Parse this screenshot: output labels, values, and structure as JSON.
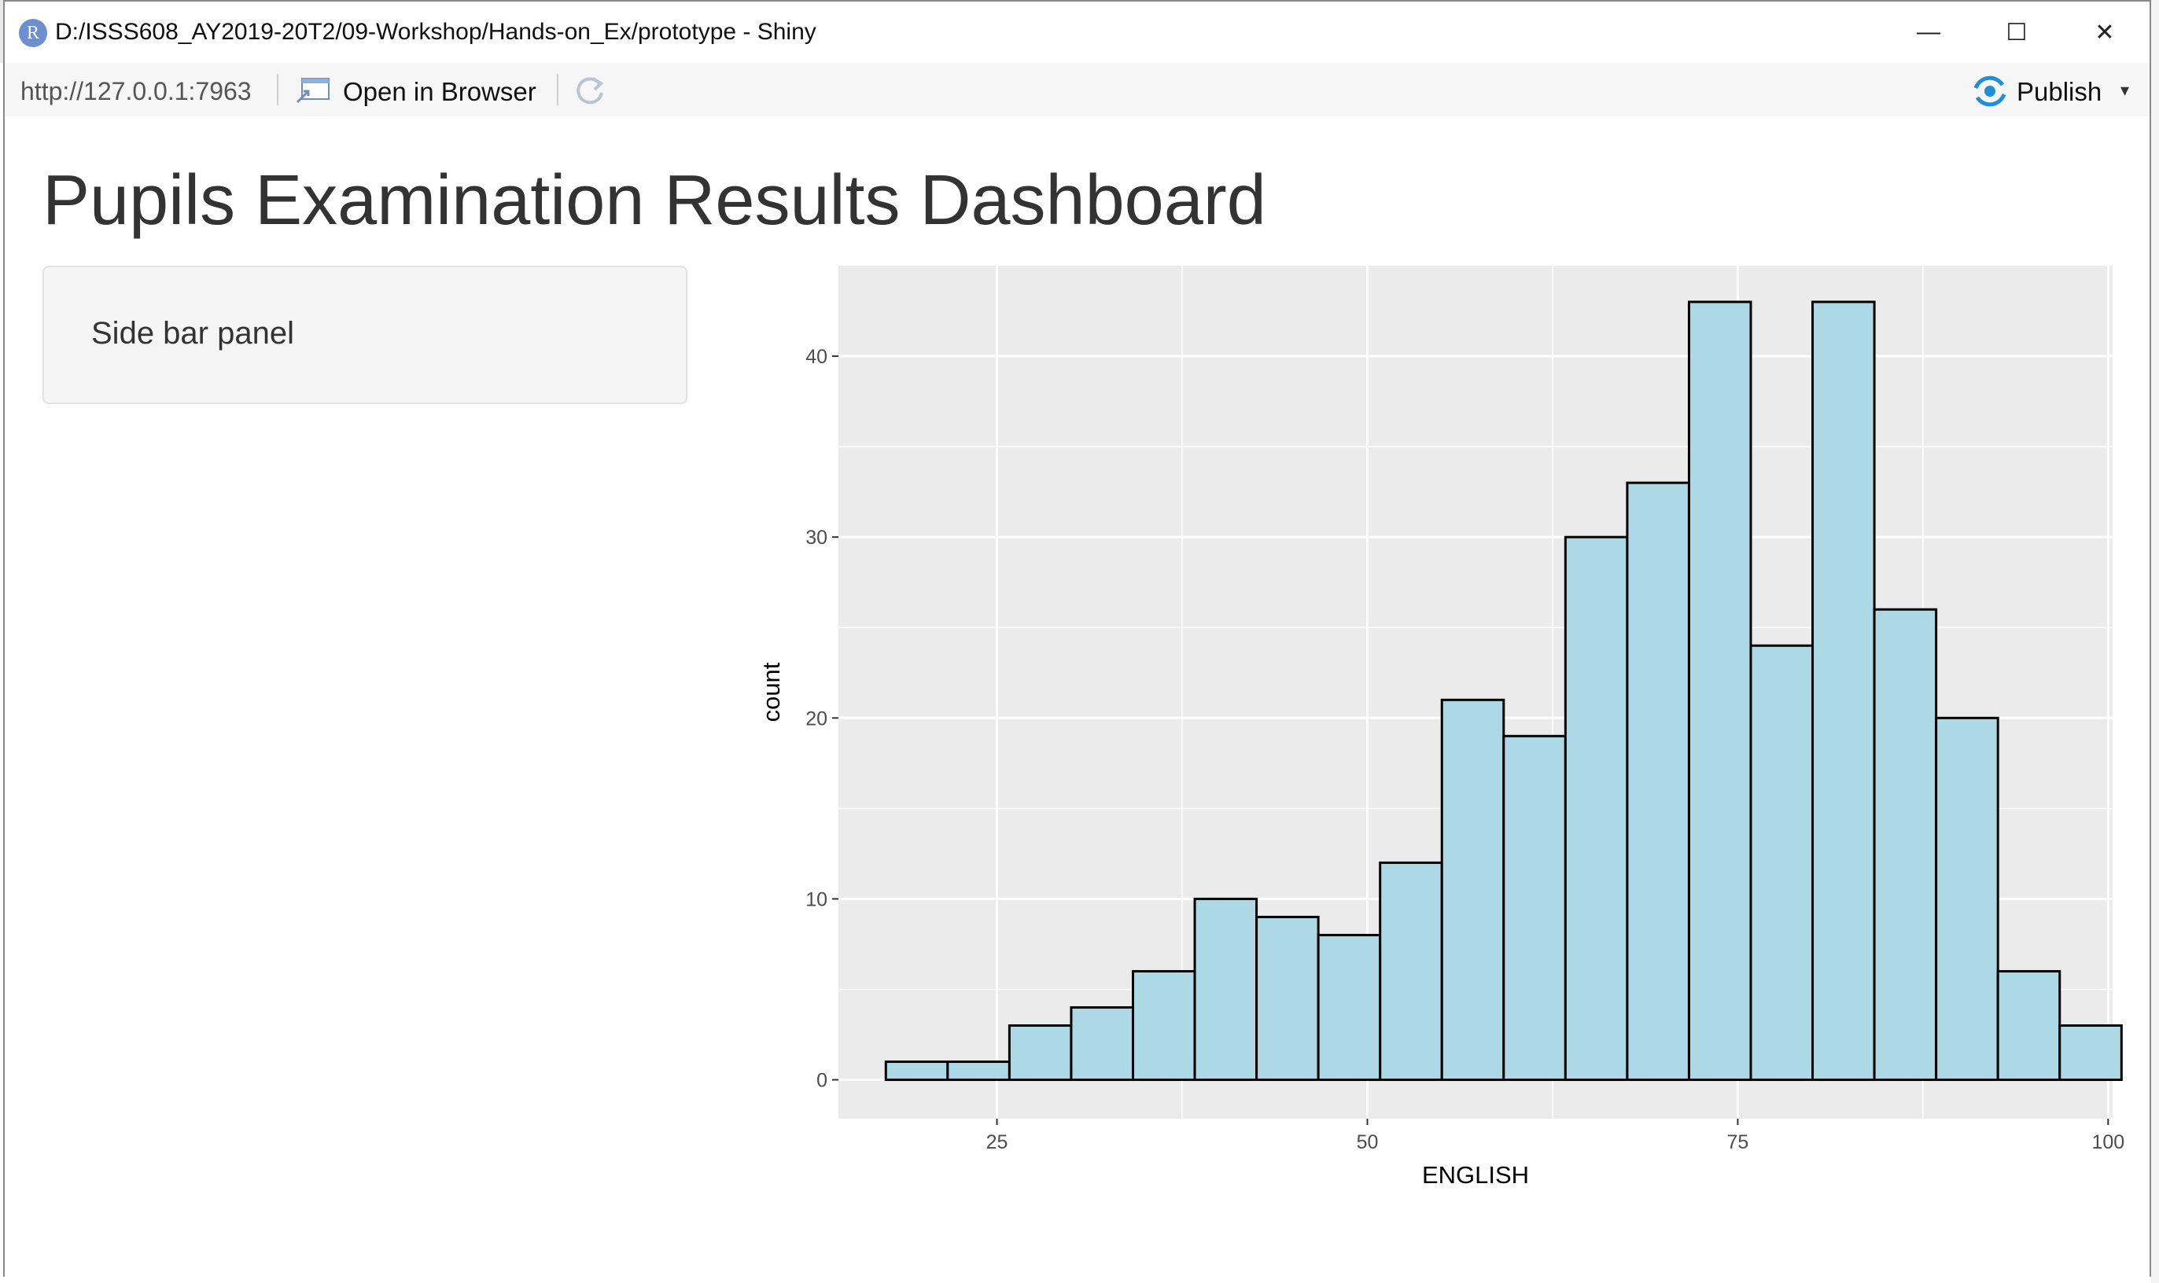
{
  "window": {
    "app_icon_letter": "R",
    "title": "D:/ISSS608_AY2019-20T2/09-Workshop/Hands-on_Ex/prototype - Shiny",
    "minimize_glyph": "—",
    "maximize_glyph": "☐",
    "close_glyph": "✕"
  },
  "toolbar": {
    "url": "http://127.0.0.1:7963",
    "open_in_browser_label": "Open in Browser",
    "open_icon": "open-in-browser-icon",
    "refresh_icon": "refresh-icon",
    "publish_label": "Publish",
    "publish_icon": "publish-icon",
    "publish_caret": "▾"
  },
  "page": {
    "title": "Pupils Examination Results Dashboard",
    "sidebar_text": "Side bar panel"
  },
  "colors": {
    "panel_bg": "#ebebeb",
    "bar_fill": "#add8e6",
    "bar_stroke": "#000000",
    "grid": "#ffffff",
    "accent_publish": "#1f8fd6"
  },
  "chart_data": {
    "type": "bar",
    "subtype": "histogram",
    "xlabel": "ENGLISH",
    "ylabel": "count",
    "bin_width": 4.17,
    "bin_start": 17.5,
    "values": [
      1,
      1,
      3,
      4,
      6,
      10,
      9,
      8,
      12,
      21,
      19,
      30,
      33,
      43,
      24,
      43,
      26,
      20,
      6,
      3
    ],
    "xlim": [
      14.3,
      100.3
    ],
    "ylim": [
      -2.15,
      45
    ],
    "xticks": [
      25,
      50,
      75,
      100
    ],
    "yticks": [
      0,
      10,
      20,
      30,
      40
    ],
    "grid": true,
    "legend": "none"
  }
}
